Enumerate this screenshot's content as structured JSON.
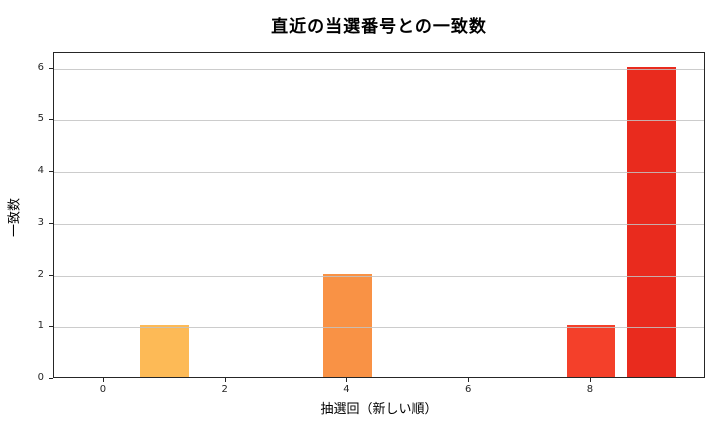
{
  "chart_data": {
    "type": "bar",
    "title": "直近の当選番号との一致数",
    "xlabel": "抽選回（新しい順）",
    "ylabel": "一致数",
    "x": [
      1,
      4,
      8,
      9
    ],
    "values": [
      1,
      2,
      1,
      6
    ],
    "bar_colors": [
      "#FDBA56",
      "#F99245",
      "#F4402A",
      "#E92B1E"
    ],
    "bar_width": 0.8,
    "xticks": [
      0,
      2,
      4,
      6,
      8
    ],
    "yticks": [
      0,
      1,
      2,
      3,
      4,
      5,
      6
    ],
    "xlim": [
      -0.82,
      9.89
    ],
    "ylim": [
      0,
      6.3
    ],
    "grid": "horizontal-above-bars",
    "grid_color": "#C3C3C3",
    "spine_color": "#262626",
    "background_color": "#FFFFFF"
  }
}
